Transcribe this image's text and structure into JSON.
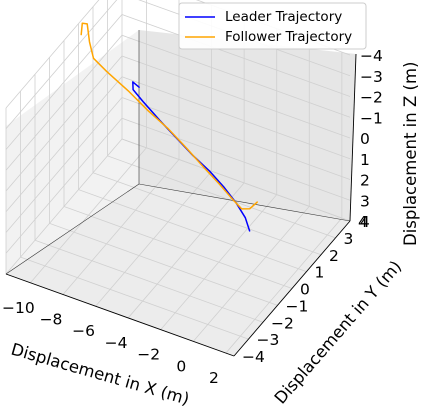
{
  "chart_data": {
    "type": "line",
    "projection": "3d",
    "xlabel": "Displacement in X (m)",
    "ylabel": "Displacement in Y (m)",
    "zlabel": "Displacement in Z (m)",
    "xlim": [
      -11.5,
      2.5
    ],
    "ylim": [
      -4,
      4
    ],
    "zlim": [
      -4,
      4
    ],
    "z_axis_inverted": true,
    "grid": true,
    "legend_position": "top-right",
    "x_ticks": [
      "−10",
      "−8",
      "−6",
      "−4",
      "−2",
      "0",
      "2"
    ],
    "y_ticks": [
      "−4",
      "−3",
      "−2",
      "−1",
      "0",
      "1",
      "2",
      "3",
      "4"
    ],
    "z_ticks": [
      "−4",
      "−3",
      "−2",
      "−1",
      "0",
      "1",
      "2",
      "3",
      "4"
    ],
    "series": [
      {
        "name": "Leader Trajectory",
        "color": "#0000ff",
        "points": [
          [
            -7.6,
            0.8,
            -2.2
          ],
          [
            -7.9,
            0.7,
            -2.45
          ],
          [
            -7.7,
            0.5,
            -2.3
          ],
          [
            -7.0,
            0.4,
            -2.0
          ],
          [
            -5.8,
            0.2,
            -1.6
          ],
          [
            -4.6,
            0.0,
            -1.25
          ],
          [
            -3.4,
            -0.2,
            -0.9
          ],
          [
            -2.3,
            -0.3,
            -0.55
          ],
          [
            -1.3,
            -0.45,
            -0.2
          ],
          [
            -0.4,
            -0.6,
            0.2
          ],
          [
            0.3,
            -0.75,
            0.6
          ],
          [
            0.7,
            -0.9,
            1.0
          ]
        ]
      },
      {
        "name": "Follower Trajectory",
        "color": "#ffa500",
        "points": [
          [
            -11.6,
            1.3,
            -3.2
          ],
          [
            -11.8,
            1.6,
            -3.45
          ],
          [
            -11.5,
            1.6,
            -3.5
          ],
          [
            -11.0,
            1.2,
            -3.1
          ],
          [
            -10.4,
            0.8,
            -2.8
          ],
          [
            -9.4,
            0.6,
            -2.6
          ],
          [
            -8.0,
            0.5,
            -2.15
          ],
          [
            -6.6,
            0.3,
            -1.75
          ],
          [
            -5.2,
            0.1,
            -1.45
          ],
          [
            -3.9,
            -0.1,
            -1.05
          ],
          [
            -2.6,
            -0.3,
            -0.6
          ],
          [
            -1.6,
            -0.4,
            -0.2
          ],
          [
            -0.7,
            -0.5,
            0.2
          ],
          [
            -0.1,
            -0.55,
            0.45
          ],
          [
            0.4,
            -0.55,
            0.3
          ],
          [
            0.9,
            -0.6,
            -0.2
          ]
        ]
      }
    ]
  }
}
